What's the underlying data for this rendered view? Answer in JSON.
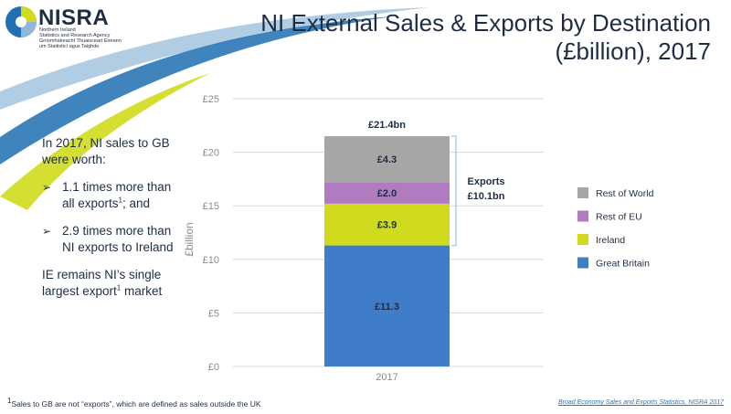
{
  "logo": {
    "name": "NISRA",
    "sub_lines": [
      "Northern Ireland",
      "Statistics and Research Agency",
      "Gníomhaireacht Thuaisceart Éireann",
      "um Staitisticí agus Taighde"
    ]
  },
  "title_lines": [
    "NI External Sales & Exports by Destination",
    "(£billion), 2017"
  ],
  "left_text": {
    "intro": "In 2017, NI sales to GB were worth:",
    "bullet1": "1.1 times more than all exports",
    "bullet1_sup": "1",
    "bullet1_tail": "; and",
    "bullet2": "2.9 times more than NI exports to Ireland",
    "closing": "IE remains NI’s single largest export",
    "closing_sup": "1",
    "closing_tail": " market"
  },
  "footnote": {
    "sup": "1",
    "text": "Sales to GB are not “exports”, which are defined as sales outside the UK"
  },
  "source": "Broad Economy Sales and Exports Statistics, NISRA 2017",
  "colors": {
    "great_britain": "#3f7dc9",
    "ireland": "#cfdb1c",
    "rest_of_eu": "#b07bc0",
    "rest_of_world": "#a6a6a6",
    "gridline": "#d9d9d9",
    "axis_text": "#8c8c8c",
    "bracket": "#8fb3da"
  },
  "chart_data": {
    "type": "bar",
    "stacked": true,
    "categories": [
      "2017"
    ],
    "series": [
      {
        "name": "Great Britain",
        "values": [
          11.3
        ],
        "label": "£11.3",
        "color": "#3f7dc9"
      },
      {
        "name": "Ireland",
        "values": [
          3.9
        ],
        "label": "£3.9",
        "color": "#cfdb1c"
      },
      {
        "name": "Rest of EU",
        "values": [
          2.0
        ],
        "label": "£2.0",
        "color": "#b07bc0"
      },
      {
        "name": "Rest of World",
        "values": [
          4.3
        ],
        "label": "£4.3",
        "color": "#a6a6a6"
      }
    ],
    "total_label": "£21.4bn",
    "annotation": {
      "line1": "Exports",
      "line2": "£10.1bn"
    },
    "ylabel": "£billion",
    "ylim": [
      0,
      25
    ],
    "yticks": [
      0,
      5,
      10,
      15,
      20,
      25
    ],
    "ytick_labels": [
      "£0",
      "£5",
      "£10",
      "£15",
      "£20",
      "£25"
    ],
    "grid": true,
    "legend_position": "right",
    "legend_order": [
      "Rest of World",
      "Rest of EU",
      "Ireland",
      "Great Britain"
    ]
  }
}
